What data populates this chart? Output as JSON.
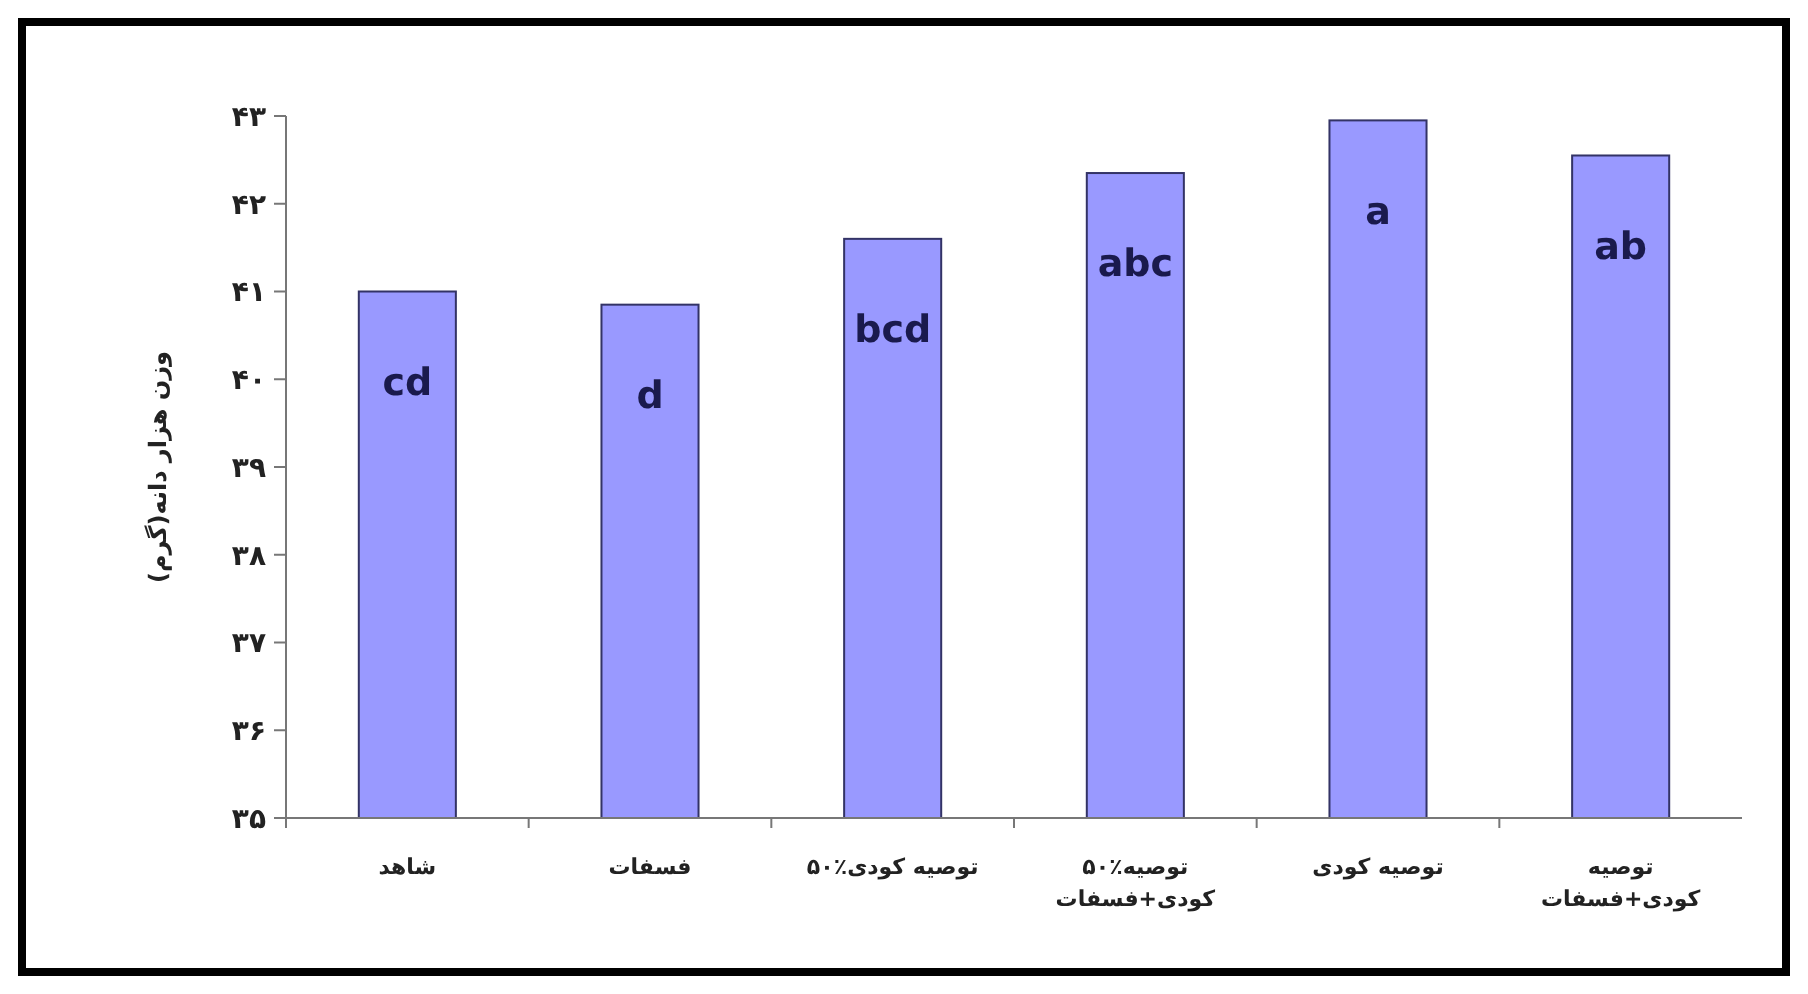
{
  "chart_data": {
    "type": "bar",
    "ylabel": "وزن هزار دانه(گرم)",
    "categories": [
      "شاهد",
      "فسفات",
      "۵۰٪توصیه کودی",
      "۵۰٪توصیه کودی+فسفات",
      "توصیه کودی",
      "توصیه کودی+فسفات"
    ],
    "values": [
      41.0,
      40.85,
      41.6,
      42.35,
      42.95,
      42.55
    ],
    "color": "#9999ff",
    "ylim": [
      35,
      43
    ],
    "yticks": [
      {
        "value": 35,
        "label": "۳۵"
      },
      {
        "value": 36,
        "label": "۳۶"
      },
      {
        "value": 37,
        "label": "۳۷"
      },
      {
        "value": 38,
        "label": "۳۸"
      },
      {
        "value": 39,
        "label": "۳۹"
      },
      {
        "value": 40,
        "label": "۴۰"
      },
      {
        "value": 41,
        "label": "۴۱"
      },
      {
        "value": 42,
        "label": "۴۲"
      },
      {
        "value": 43,
        "label": "۴۳"
      }
    ],
    "annotations": [
      {
        "text": "cd",
        "x": "شاهد",
        "y": 41.0
      },
      {
        "text": "d",
        "x": "فسفات",
        "y": 40.85
      },
      {
        "text": "bcd",
        "x": "۵۰٪توصیه کودی",
        "y": 41.6
      },
      {
        "text": "abc",
        "x": "۵۰٪توصیه کودی+فسفات",
        "y": 42.35
      },
      {
        "text": "a",
        "x": "توصیه کودی",
        "y": 42.95
      },
      {
        "text": "ab",
        "x": "توصیه کودی+فسفات",
        "y": 42.55
      }
    ],
    "grid": false
  }
}
